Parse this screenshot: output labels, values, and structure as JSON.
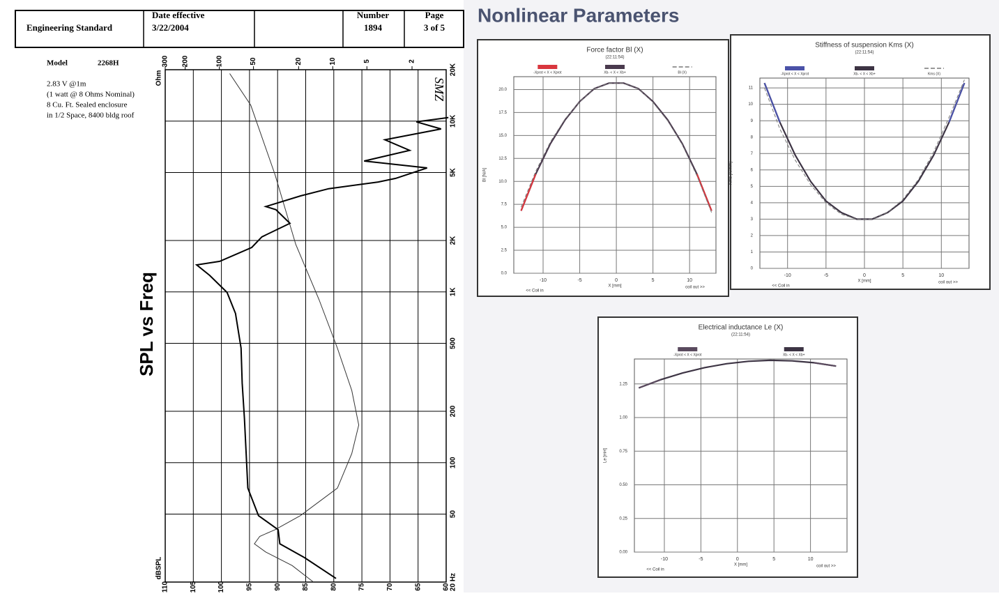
{
  "header": {
    "title": "Engineering Standard",
    "date_label": "Date effective",
    "date": "3/22/2004",
    "number_label": "Number",
    "number": "1894",
    "page_label": "Page",
    "page": "3 of 5"
  },
  "model": {
    "label": "Model",
    "value": "2268H",
    "notes": [
      "2.83 V @1m",
      "(1 watt @ 8 Ohms Nominal)",
      "8 Cu. Ft. Sealed enclosure",
      "in 1/2 Space, 8400 bldg roof"
    ]
  },
  "spl_chart": {
    "title": "SPL vs Freq",
    "annotation": "SMZ",
    "ohm_axis_label": "Ohm",
    "db_axis_label": "dBSPL",
    "freq_lim": [
      20,
      20000
    ],
    "freq_ticks": [
      {
        "value": 20000,
        "label": "20K"
      },
      {
        "value": 10000,
        "label": "10K"
      },
      {
        "value": 5000,
        "label": "5K"
      },
      {
        "value": 2000,
        "label": "2K"
      },
      {
        "value": 1000,
        "label": "1K"
      },
      500,
      200,
      100,
      50,
      {
        "value": 20,
        "label": "20 Hz"
      }
    ],
    "db_lim": [
      110,
      60
    ],
    "db_ticks": [
      110,
      105,
      100,
      95,
      90,
      85,
      80,
      75,
      70,
      65,
      60
    ],
    "ohm_lim": [
      300,
      1
    ],
    "ohm_ticks": [
      300,
      200,
      100,
      50,
      20,
      10,
      5,
      2
    ],
    "spl": {
      "color": "#000000",
      "freq": [
        21,
        27.8,
        33.5,
        40.5,
        49,
        71,
        113,
        182,
        292,
        468,
        748,
        993,
        1250,
        1440,
        1510,
        1820,
        2100,
        2520,
        3030,
        3160,
        3650,
        4020,
        4400,
        4620,
        5320,
        5840,
        6740,
        7780,
        9000,
        9900,
        10500
      ],
      "values": [
        79.6,
        85.2,
        89.6,
        89.9,
        93.4,
        95.3,
        95.6,
        95.9,
        96.3,
        96.5,
        97.5,
        99,
        102.1,
        104.4,
        100.3,
        94.6,
        92.8,
        87.8,
        90.3,
        92.1,
        85.9,
        80.9,
        72.1,
        69,
        63.4,
        74.6,
        66.5,
        70.9,
        60.9,
        65.3,
        59.6
      ]
    },
    "impedance": {
      "color": "#333333",
      "freq": [
        20,
        25,
        30,
        33.5,
        37,
        40.5,
        49,
        71,
        113,
        166,
        265,
        468,
        900,
        1900,
        4860,
        12400,
        19000
      ],
      "values": [
        14.8,
        22.8,
        39,
        49.1,
        44,
        32.3,
        19.3,
        9.1,
        6.8,
        5.9,
        6.8,
        9.1,
        13.2,
        21.2,
        32.3,
        52.8,
        81
      ]
    }
  },
  "nonlinear": {
    "title": "Nonlinear Parameters",
    "charts": [
      {
        "type": "line",
        "title": "Force factor Bl (X)",
        "subtitle": "(22:11:54)",
        "y_label": "Bl [N/A]",
        "x_label": "X [mm]",
        "x_left_label": "<< Coil in",
        "x_right_label": "coil out >>",
        "xlim": [
          -14,
          13.6
        ],
        "ylim": [
          0,
          21.4
        ],
        "xticks": [
          -10,
          -5,
          0,
          5,
          10
        ],
        "yticks": [
          {
            "value": 0,
            "label": "0.0"
          },
          {
            "value": 2.5,
            "label": "2.5"
          },
          {
            "value": 5,
            "label": "5.0"
          },
          {
            "value": 7.5,
            "label": "7.5"
          },
          {
            "value": 10,
            "label": "10.0"
          },
          {
            "value": 12.5,
            "label": "12.5"
          },
          {
            "value": 15,
            "label": "15.0"
          },
          {
            "value": 17.5,
            "label": "17.5"
          },
          {
            "value": 20,
            "label": "20.0"
          }
        ],
        "x": [
          -13,
          -11,
          -9,
          -7,
          -5,
          -3,
          -1,
          1,
          3,
          5,
          7,
          9,
          11,
          13
        ],
        "series": [
          {
            "name": "-Xprot < X < Xprot",
            "color": "#d9363e",
            "values": [
              6.8,
              10.8,
              null,
              null,
              null,
              null,
              null,
              null,
              null,
              null,
              null,
              null,
              10.8,
              6.8
            ]
          },
          {
            "name": "Xb- < X < Xb+",
            "color": "#4a3a4e",
            "values": [
              6.8,
              10.8,
              14.1,
              16.7,
              18.7,
              20.1,
              20.7,
              20.7,
              20.1,
              18.7,
              16.7,
              14.1,
              10.8,
              6.8
            ]
          },
          {
            "name": "Bl (X)",
            "color": "#777777",
            "dashed": true,
            "values": [
              7.2,
              11.1,
              14.3,
              16.8,
              18.7,
              20.1,
              20.7,
              20.7,
              20.1,
              18.6,
              16.6,
              14.0,
              10.6,
              6.6
            ]
          }
        ]
      },
      {
        "type": "line",
        "title": "Stiffness of suspension Kms (X)",
        "subtitle": "(22:11:54)",
        "y_label": "Kms [N/mm]",
        "x_label": "X [mm]",
        "x_left_label": "<< Coil in",
        "x_right_label": "coil out >>",
        "xlim": [
          -13.6,
          13.6
        ],
        "ylim": [
          0,
          11.6
        ],
        "xticks": [
          -10,
          -5,
          0,
          5,
          10
        ],
        "yticks": [
          0,
          1,
          2,
          3,
          4,
          5,
          6,
          7,
          8,
          9,
          10,
          11
        ],
        "x": [
          -13,
          -11,
          -9,
          -7,
          -5,
          -3,
          -1,
          1,
          3,
          5,
          7,
          9,
          11,
          13
        ],
        "series": [
          {
            "name": "-Xprot < X < Xprot",
            "color": "#4b52a8",
            "values": [
              11.3,
              8.9,
              null,
              null,
              null,
              null,
              null,
              null,
              null,
              null,
              null,
              null,
              8.9,
              11.3
            ]
          },
          {
            "name": "Xb- < X < Xb+",
            "color": "#3d3444",
            "values": [
              11.3,
              8.9,
              6.9,
              5.3,
              4.1,
              3.4,
              3.0,
              3.0,
              3.4,
              4.1,
              5.3,
              6.9,
              8.9,
              11.3
            ]
          },
          {
            "name": "Kms (X)",
            "color": "#777777",
            "dashed": true,
            "values": [
              11.0,
              8.5,
              6.6,
              5.1,
              4.0,
              3.3,
              3.0,
              3.0,
              3.4,
              4.2,
              5.4,
              7.1,
              9.2,
              11.5
            ]
          }
        ]
      },
      {
        "type": "line",
        "title": "Electrical inductance Le (X)",
        "subtitle": "(22:11:54)",
        "y_label": "Le [mH]",
        "x_label": "X [mm]",
        "x_left_label": "<< Coil in",
        "x_right_label": "coil out >>",
        "xlim": [
          -14.1,
          15
        ],
        "ylim": [
          0,
          1.435
        ],
        "xticks": [
          -10,
          -5,
          0,
          5,
          10
        ],
        "yticks": [
          {
            "value": 0,
            "label": "0.00"
          },
          {
            "value": 0.25,
            "label": "0.25"
          },
          {
            "value": 0.5,
            "label": "0.50"
          },
          {
            "value": 0.75,
            "label": "0.75"
          },
          {
            "value": 1,
            "label": "1.00"
          },
          {
            "value": 1.25,
            "label": "1.25"
          }
        ],
        "x": [
          -13.5,
          -10.5,
          -7.5,
          -4.5,
          -1.5,
          1.5,
          4.5,
          7.5,
          10.5,
          13.5
        ],
        "series": [
          {
            "name": "-Xprot < X < Xprot",
            "color": "#5a4a5e",
            "values": [
              1.22,
              1.281,
              null,
              null,
              null,
              null,
              null,
              null,
              1.407,
              1.382
            ]
          },
          {
            "name": "Xb- < X < Xb+",
            "color": "#3d3444",
            "values": [
              1.22,
              1.281,
              1.331,
              1.371,
              1.4,
              1.418,
              1.425,
              1.421,
              1.407,
              1.382
            ]
          }
        ]
      }
    ]
  }
}
